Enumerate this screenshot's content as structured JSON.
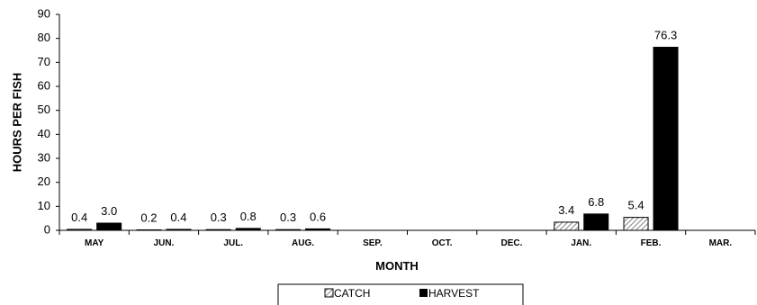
{
  "chart_data": {
    "type": "bar",
    "title": "",
    "xlabel": "MONTH",
    "ylabel": "HOURS PER FISH",
    "ylim": [
      0,
      90
    ],
    "y_ticks": [
      0,
      10,
      20,
      30,
      40,
      50,
      60,
      70,
      80,
      90
    ],
    "grid": false,
    "legend_position": "bottom",
    "categories": [
      "MAY",
      "JUN.",
      "JUL.",
      "AUG.",
      "SEP.",
      "OCT.",
      "DEC.",
      "JAN.",
      "FEB.",
      "MAR."
    ],
    "series": [
      {
        "name": "CATCH",
        "style": "hatched",
        "color": "#a0a0a0",
        "values": [
          0.4,
          0.2,
          0.3,
          0.3,
          null,
          null,
          null,
          3.4,
          5.4,
          null
        ],
        "labels": [
          "0.4",
          "0.2",
          "0.3",
          "0.3",
          "",
          "",
          "",
          "3.4",
          "5.4",
          ""
        ]
      },
      {
        "name": "HARVEST",
        "style": "solid",
        "color": "#000000",
        "values": [
          3.0,
          0.4,
          0.8,
          0.6,
          null,
          null,
          null,
          6.8,
          76.3,
          null
        ],
        "labels": [
          "3.0",
          "0.4",
          "0.8",
          "0.6",
          "",
          "",
          "",
          "6.8",
          "76.3",
          ""
        ]
      }
    ]
  }
}
